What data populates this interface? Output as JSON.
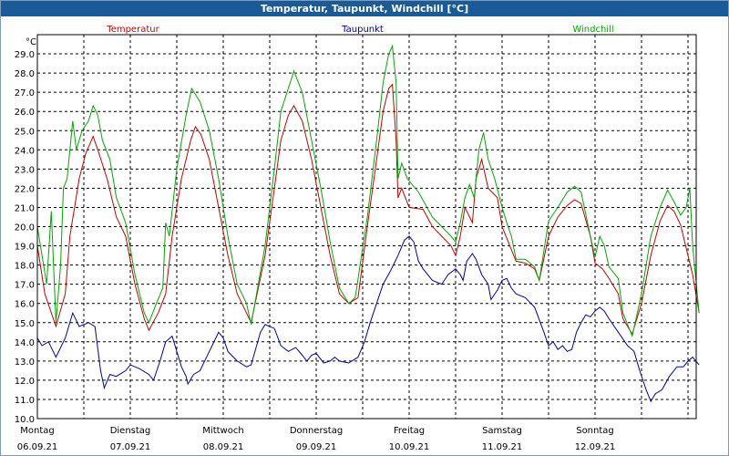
{
  "window": {
    "title": "Temperatur, Taupunkt, Windchill [°C]"
  },
  "colors": {
    "temperature": "#cc0000",
    "dewpoint": "#0000aa",
    "windchill": "#00aa00",
    "grid": "#000000",
    "titlebar": "#1a5a96"
  },
  "chart_data": {
    "type": "line",
    "title": "Temperatur, Taupunkt, Windchill [°C]",
    "ylabel": "°C",
    "xlabel": "",
    "ylim": [
      10.0,
      30.0
    ],
    "xlim": [
      0,
      7
    ],
    "x_unit": "days since Montag 06.09.21 00:00",
    "yticks": [
      "10.0",
      "11.0",
      "12.0",
      "13.0",
      "14.0",
      "15.0",
      "16.0",
      "17.0",
      "18.0",
      "19.0",
      "20.0",
      "21.0",
      "22.0",
      "23.0",
      "24.0",
      "25.0",
      "26.0",
      "27.0",
      "28.0",
      "29.0"
    ],
    "days": [
      {
        "day": "Montag",
        "date": "06.09.21"
      },
      {
        "day": "Dienstag",
        "date": "07.09.21"
      },
      {
        "day": "Mittwoch",
        "date": "08.09.21"
      },
      {
        "day": "Donnerstag",
        "date": "09.09.21"
      },
      {
        "day": "Freitag",
        "date": "10.09.21"
      },
      {
        "day": "Samstag",
        "date": "11.09.21"
      },
      {
        "day": "Sonntag",
        "date": "12.09.21"
      }
    ],
    "grid": true,
    "series": [
      {
        "name": "Temperatur",
        "color": "#cc0000",
        "points": [
          [
            0,
            19
          ],
          [
            0.08,
            16.5
          ],
          [
            0.2,
            14.8
          ],
          [
            0.3,
            16.5
          ],
          [
            0.35,
            19.5
          ],
          [
            0.45,
            22.5
          ],
          [
            0.52,
            23.8
          ],
          [
            0.6,
            24.7
          ],
          [
            0.65,
            24
          ],
          [
            0.75,
            22.5
          ],
          [
            0.85,
            20.5
          ],
          [
            0.95,
            19.5
          ],
          [
            1.05,
            17
          ],
          [
            1.15,
            15.2
          ],
          [
            1.2,
            14.6
          ],
          [
            1.3,
            15.5
          ],
          [
            1.38,
            16.5
          ],
          [
            1.45,
            19.5
          ],
          [
            1.55,
            22.5
          ],
          [
            1.65,
            24.5
          ],
          [
            1.7,
            25.2
          ],
          [
            1.76,
            24.8
          ],
          [
            1.85,
            23.5
          ],
          [
            1.95,
            21
          ],
          [
            2.05,
            18.5
          ],
          [
            2.15,
            16.5
          ],
          [
            2.25,
            15.5
          ],
          [
            2.3,
            15
          ],
          [
            2.45,
            18.5
          ],
          [
            2.55,
            22
          ],
          [
            2.62,
            24.5
          ],
          [
            2.7,
            25.8
          ],
          [
            2.76,
            26.3
          ],
          [
            2.85,
            25.5
          ],
          [
            2.95,
            23.5
          ],
          [
            3.05,
            21
          ],
          [
            3.15,
            18.5
          ],
          [
            3.25,
            16.5
          ],
          [
            3.35,
            16
          ],
          [
            3.45,
            16.3
          ],
          [
            3.55,
            20
          ],
          [
            3.65,
            23.5
          ],
          [
            3.72,
            26
          ],
          [
            3.78,
            27.2
          ],
          [
            3.82,
            27.4
          ],
          [
            3.86,
            24.5
          ],
          [
            3.88,
            21.5
          ],
          [
            3.92,
            22
          ],
          [
            4.0,
            21
          ],
          [
            4.15,
            20.9
          ],
          [
            4.25,
            20
          ],
          [
            4.35,
            19.5
          ],
          [
            4.45,
            19
          ],
          [
            4.5,
            18.5
          ],
          [
            4.55,
            19.5
          ],
          [
            4.6,
            21
          ],
          [
            4.65,
            20.5
          ],
          [
            4.68,
            20.2
          ],
          [
            4.72,
            22.5
          ],
          [
            4.78,
            23.5
          ],
          [
            4.85,
            22
          ],
          [
            4.95,
            21.5
          ],
          [
            5.0,
            20
          ],
          [
            5.1,
            18.8
          ],
          [
            5.15,
            18.2
          ],
          [
            5.25,
            18.1
          ],
          [
            5.35,
            17.8
          ],
          [
            5.4,
            17.2
          ],
          [
            5.5,
            19.5
          ],
          [
            5.6,
            20.5
          ],
          [
            5.7,
            21.1
          ],
          [
            5.78,
            21.4
          ],
          [
            5.85,
            21.2
          ],
          [
            5.95,
            19.5
          ],
          [
            6.0,
            18.1
          ],
          [
            6.08,
            17.8
          ],
          [
            6.15,
            17.3
          ],
          [
            6.25,
            16.5
          ],
          [
            6.3,
            15.2
          ],
          [
            6.4,
            14.4
          ],
          [
            6.5,
            16
          ],
          [
            6.6,
            18.5
          ],
          [
            6.7,
            20.3
          ],
          [
            6.78,
            21.1
          ],
          [
            6.85,
            20.8
          ],
          [
            6.92,
            20.1
          ],
          [
            7.0,
            18.5
          ],
          [
            7.05,
            17.5
          ],
          [
            7.12,
            15.5
          ]
        ]
      },
      {
        "name": "Taupunkt",
        "color": "#0000aa",
        "points": [
          [
            0,
            14.2
          ],
          [
            0.05,
            13.8
          ],
          [
            0.12,
            14
          ],
          [
            0.2,
            13.2
          ],
          [
            0.3,
            14.2
          ],
          [
            0.38,
            15.5
          ],
          [
            0.45,
            14.8
          ],
          [
            0.55,
            15
          ],
          [
            0.62,
            14.8
          ],
          [
            0.68,
            12.5
          ],
          [
            0.72,
            11.6
          ],
          [
            0.78,
            12.3
          ],
          [
            0.85,
            12.2
          ],
          [
            0.95,
            12.5
          ],
          [
            1.0,
            12.8
          ],
          [
            1.1,
            12.6
          ],
          [
            1.2,
            12.3
          ],
          [
            1.25,
            12
          ],
          [
            1.32,
            13
          ],
          [
            1.38,
            14
          ],
          [
            1.45,
            14.3
          ],
          [
            1.5,
            13.5
          ],
          [
            1.55,
            12.7
          ],
          [
            1.6,
            12.2
          ],
          [
            1.62,
            11.8
          ],
          [
            1.68,
            12.3
          ],
          [
            1.75,
            12.5
          ],
          [
            1.85,
            13.5
          ],
          [
            1.95,
            14.5
          ],
          [
            2.0,
            14.2
          ],
          [
            2.05,
            13.5
          ],
          [
            2.15,
            13
          ],
          [
            2.25,
            12.7
          ],
          [
            2.3,
            12.8
          ],
          [
            2.4,
            14.5
          ],
          [
            2.45,
            14.9
          ],
          [
            2.55,
            14.7
          ],
          [
            2.62,
            13.8
          ],
          [
            2.7,
            13.5
          ],
          [
            2.78,
            13.7
          ],
          [
            2.85,
            13.3
          ],
          [
            2.9,
            13
          ],
          [
            2.95,
            13.3
          ],
          [
            3.0,
            13.4
          ],
          [
            3.08,
            12.9
          ],
          [
            3.15,
            13
          ],
          [
            3.2,
            13.2
          ],
          [
            3.25,
            13
          ],
          [
            3.35,
            12.9
          ],
          [
            3.45,
            13.2
          ],
          [
            3.52,
            14
          ],
          [
            3.58,
            15
          ],
          [
            3.65,
            16
          ],
          [
            3.72,
            17
          ],
          [
            3.8,
            17.7
          ],
          [
            3.88,
            18.5
          ],
          [
            3.95,
            19.3
          ],
          [
            4.0,
            19.5
          ],
          [
            4.05,
            19.2
          ],
          [
            4.1,
            18.2
          ],
          [
            4.15,
            17.8
          ],
          [
            4.25,
            17.2
          ],
          [
            4.35,
            17
          ],
          [
            4.42,
            17.5
          ],
          [
            4.5,
            17.8
          ],
          [
            4.55,
            17.5
          ],
          [
            4.58,
            17.2
          ],
          [
            4.62,
            18.2
          ],
          [
            4.68,
            18.6
          ],
          [
            4.72,
            18.3
          ],
          [
            4.78,
            17.5
          ],
          [
            4.85,
            17
          ],
          [
            4.88,
            16.2
          ],
          [
            4.95,
            16.7
          ],
          [
            5.0,
            17.2
          ],
          [
            5.05,
            17.3
          ],
          [
            5.1,
            16.8
          ],
          [
            5.15,
            16.5
          ],
          [
            5.25,
            16.3
          ],
          [
            5.35,
            15.8
          ],
          [
            5.45,
            14.5
          ],
          [
            5.5,
            13.8
          ],
          [
            5.55,
            14
          ],
          [
            5.6,
            13.6
          ],
          [
            5.65,
            13.8
          ],
          [
            5.7,
            13.5
          ],
          [
            5.75,
            13.6
          ],
          [
            5.8,
            14.5
          ],
          [
            5.85,
            15
          ],
          [
            5.9,
            15.4
          ],
          [
            5.95,
            15.3
          ],
          [
            6.0,
            15.6
          ],
          [
            6.05,
            15.8
          ],
          [
            6.1,
            15.6
          ],
          [
            6.15,
            15.2
          ],
          [
            6.25,
            14.5
          ],
          [
            6.35,
            13.8
          ],
          [
            6.42,
            13.5
          ],
          [
            6.48,
            12.5
          ],
          [
            6.55,
            11.5
          ],
          [
            6.6,
            10.9
          ],
          [
            6.65,
            11.3
          ],
          [
            6.72,
            11.5
          ],
          [
            6.8,
            12.2
          ],
          [
            6.88,
            12.7
          ],
          [
            6.95,
            12.7
          ],
          [
            7.0,
            13
          ],
          [
            7.05,
            13.2
          ],
          [
            7.12,
            12.8
          ]
        ]
      },
      {
        "name": "Windchill",
        "color": "#00aa00",
        "points": [
          [
            0,
            20
          ],
          [
            0.05,
            18.5
          ],
          [
            0.1,
            17
          ],
          [
            0.15,
            20.8
          ],
          [
            0.2,
            15
          ],
          [
            0.25,
            18
          ],
          [
            0.28,
            22
          ],
          [
            0.32,
            22.5
          ],
          [
            0.38,
            25.5
          ],
          [
            0.42,
            24
          ],
          [
            0.48,
            25
          ],
          [
            0.55,
            25.5
          ],
          [
            0.6,
            26.3
          ],
          [
            0.65,
            25.8
          ],
          [
            0.7,
            24.5
          ],
          [
            0.78,
            23.5
          ],
          [
            0.85,
            21.5
          ],
          [
            0.95,
            20.2
          ],
          [
            1.05,
            17.5
          ],
          [
            1.15,
            15.5
          ],
          [
            1.2,
            15
          ],
          [
            1.28,
            16
          ],
          [
            1.35,
            16.8
          ],
          [
            1.38,
            20.2
          ],
          [
            1.42,
            19.5
          ],
          [
            1.5,
            23
          ],
          [
            1.6,
            25.8
          ],
          [
            1.66,
            27.2
          ],
          [
            1.75,
            26.5
          ],
          [
            1.85,
            25
          ],
          [
            1.95,
            22.5
          ],
          [
            2.05,
            19.5
          ],
          [
            2.15,
            17
          ],
          [
            2.25,
            16
          ],
          [
            2.3,
            14.9
          ],
          [
            2.45,
            19
          ],
          [
            2.55,
            23
          ],
          [
            2.62,
            26
          ],
          [
            2.7,
            27.2
          ],
          [
            2.76,
            28.1
          ],
          [
            2.85,
            27
          ],
          [
            2.95,
            24.5
          ],
          [
            3.05,
            22
          ],
          [
            3.15,
            19.2
          ],
          [
            3.25,
            16.8
          ],
          [
            3.35,
            16
          ],
          [
            3.42,
            16.3
          ],
          [
            3.55,
            20.5
          ],
          [
            3.65,
            24.5
          ],
          [
            3.72,
            27.5
          ],
          [
            3.78,
            29
          ],
          [
            3.82,
            29.4
          ],
          [
            3.86,
            27.5
          ],
          [
            3.88,
            22.5
          ],
          [
            3.92,
            23.3
          ],
          [
            3.98,
            22.5
          ],
          [
            4.1,
            21.8
          ],
          [
            4.25,
            20.5
          ],
          [
            4.35,
            20
          ],
          [
            4.45,
            19.5
          ],
          [
            4.5,
            19.2
          ],
          [
            4.55,
            20.2
          ],
          [
            4.6,
            21.5
          ],
          [
            4.65,
            22.2
          ],
          [
            4.7,
            21.5
          ],
          [
            4.75,
            24
          ],
          [
            4.8,
            24.9
          ],
          [
            4.85,
            23.5
          ],
          [
            4.92,
            22.5
          ],
          [
            5.0,
            21
          ],
          [
            5.05,
            20.2
          ],
          [
            5.1,
            19.5
          ],
          [
            5.15,
            18.3
          ],
          [
            5.25,
            18.3
          ],
          [
            5.35,
            17.9
          ],
          [
            5.4,
            17.2
          ],
          [
            5.5,
            20.3
          ],
          [
            5.6,
            21
          ],
          [
            5.7,
            21.8
          ],
          [
            5.78,
            22.1
          ],
          [
            5.85,
            21.8
          ],
          [
            5.95,
            19.5
          ],
          [
            6.0,
            18.4
          ],
          [
            6.05,
            19.5
          ],
          [
            6.1,
            19
          ],
          [
            6.15,
            17.9
          ],
          [
            6.25,
            17.3
          ],
          [
            6.3,
            15.5
          ],
          [
            6.4,
            14.3
          ],
          [
            6.5,
            16.5
          ],
          [
            6.6,
            19.5
          ],
          [
            6.7,
            21
          ],
          [
            6.78,
            21.9
          ],
          [
            6.85,
            21.3
          ],
          [
            6.92,
            20.6
          ],
          [
            6.98,
            21
          ],
          [
            7.02,
            22
          ],
          [
            7.05,
            19
          ],
          [
            7.12,
            15.5
          ]
        ]
      }
    ]
  }
}
